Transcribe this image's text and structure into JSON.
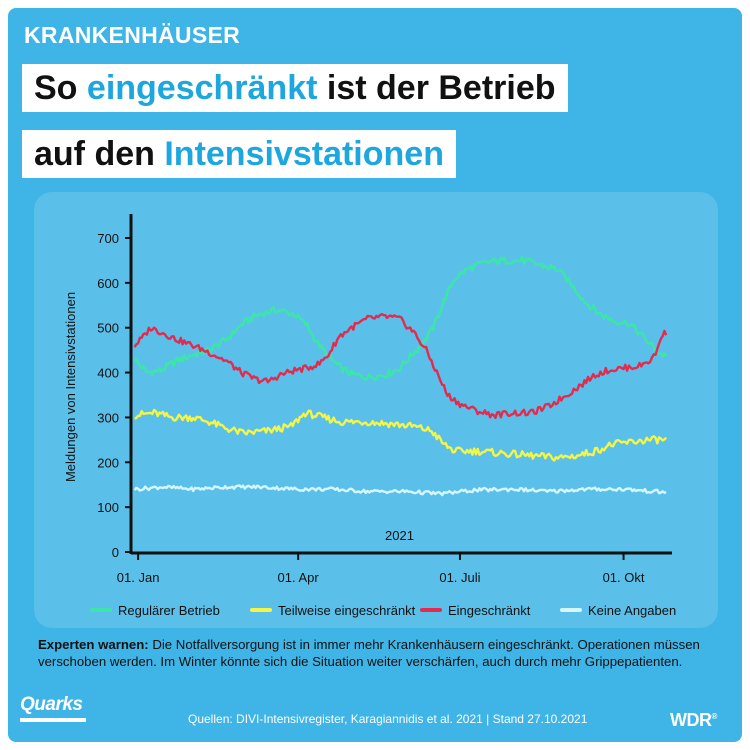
{
  "header": {
    "kicker": "KRANKENHÄUSER",
    "title_line1_part1": "So",
    "title_line1_highlight": "eingeschränkt",
    "title_line1_part2": "ist der Betrieb",
    "title_line2_part1": "auf den",
    "title_line2_highlight": "Intensivstationen"
  },
  "note": {
    "bold": "Experten warnen:",
    "text": "Die Notfallversorgung ist in immer mehr Krankenhäusern eingeschränkt. Operationen müssen verschoben werden. Im Winter könnte sich die Situation weiter verschärfen, auch durch mehr Grippepatienten."
  },
  "footer": {
    "brand": "Quarks",
    "sources": "Quellen: DIVI-Intensivregister, Karagiannidis et al. 2021 | Stand 27.10.2021",
    "wdr": "WDR",
    "wdr_mark": "®"
  },
  "colors": {
    "background": "#3fb4e6",
    "highlight": "#1ea6de",
    "regular": "#3de6a8",
    "partial": "#f5f545",
    "restricted": "#e42a4e",
    "none": "#d6f6ff"
  },
  "chart_data": {
    "type": "line",
    "title": "",
    "xlabel": "",
    "ylabel": "Meldungen von Intensivstationen",
    "year_label": "2021",
    "ylim": [
      0,
      700
    ],
    "xlim": [
      "2020-12-28",
      "2021-10-26"
    ],
    "yticks": [
      0,
      100,
      200,
      300,
      400,
      500,
      600,
      700
    ],
    "xticks": [
      {
        "date": "2021-01-01",
        "label": "01. Jan"
      },
      {
        "date": "2021-04-01",
        "label": "01. Apr"
      },
      {
        "date": "2021-07-01",
        "label": "01. Juli"
      },
      {
        "date": "2021-10-01",
        "label": "01. Okt"
      }
    ],
    "legend_position": "bottom",
    "series": [
      {
        "name": "Regulärer Betrieb",
        "color": "#3de6a8",
        "points": [
          [
            "2020-12-30",
            430
          ],
          [
            "2021-01-06",
            400
          ],
          [
            "2021-01-14",
            405
          ],
          [
            "2021-01-22",
            425
          ],
          [
            "2021-02-01",
            440
          ],
          [
            "2021-02-10",
            450
          ],
          [
            "2021-02-20",
            475
          ],
          [
            "2021-03-01",
            510
          ],
          [
            "2021-03-10",
            530
          ],
          [
            "2021-03-20",
            540
          ],
          [
            "2021-03-30",
            530
          ],
          [
            "2021-04-06",
            505
          ],
          [
            "2021-04-12",
            465
          ],
          [
            "2021-04-18",
            435
          ],
          [
            "2021-04-25",
            410
          ],
          [
            "2021-05-02",
            395
          ],
          [
            "2021-05-10",
            390
          ],
          [
            "2021-05-20",
            395
          ],
          [
            "2021-05-28",
            410
          ],
          [
            "2021-06-04",
            440
          ],
          [
            "2021-06-11",
            470
          ],
          [
            "2021-06-16",
            500
          ],
          [
            "2021-06-22",
            560
          ],
          [
            "2021-06-28",
            610
          ],
          [
            "2021-07-05",
            630
          ],
          [
            "2021-07-15",
            645
          ],
          [
            "2021-07-25",
            650
          ],
          [
            "2021-08-05",
            650
          ],
          [
            "2021-08-15",
            640
          ],
          [
            "2021-08-25",
            630
          ],
          [
            "2021-09-02",
            595
          ],
          [
            "2021-09-10",
            555
          ],
          [
            "2021-09-18",
            530
          ],
          [
            "2021-09-26",
            515
          ],
          [
            "2021-10-04",
            510
          ],
          [
            "2021-10-12",
            480
          ],
          [
            "2021-10-18",
            455
          ],
          [
            "2021-10-22",
            440
          ],
          [
            "2021-10-25",
            440
          ]
        ]
      },
      {
        "name": "Teilweise eingeschränkt",
        "color": "#f5f545",
        "points": [
          [
            "2020-12-30",
            305
          ],
          [
            "2021-01-10",
            310
          ],
          [
            "2021-01-20",
            300
          ],
          [
            "2021-02-01",
            300
          ],
          [
            "2021-02-10",
            290
          ],
          [
            "2021-02-20",
            275
          ],
          [
            "2021-03-01",
            265
          ],
          [
            "2021-03-15",
            270
          ],
          [
            "2021-03-28",
            280
          ],
          [
            "2021-04-05",
            310
          ],
          [
            "2021-04-15",
            300
          ],
          [
            "2021-04-25",
            290
          ],
          [
            "2021-05-10",
            290
          ],
          [
            "2021-05-25",
            285
          ],
          [
            "2021-06-05",
            280
          ],
          [
            "2021-06-15",
            270
          ],
          [
            "2021-06-22",
            240
          ],
          [
            "2021-06-28",
            225
          ],
          [
            "2021-07-10",
            225
          ],
          [
            "2021-07-25",
            220
          ],
          [
            "2021-08-10",
            215
          ],
          [
            "2021-08-25",
            210
          ],
          [
            "2021-09-05",
            215
          ],
          [
            "2021-09-15",
            225
          ],
          [
            "2021-09-25",
            240
          ],
          [
            "2021-10-05",
            245
          ],
          [
            "2021-10-15",
            250
          ],
          [
            "2021-10-25",
            250
          ]
        ]
      },
      {
        "name": "Eingeschränkt",
        "color": "#e42a4e",
        "points": [
          [
            "2020-12-30",
            460
          ],
          [
            "2021-01-04",
            480
          ],
          [
            "2021-01-08",
            500
          ],
          [
            "2021-01-14",
            490
          ],
          [
            "2021-01-22",
            475
          ],
          [
            "2021-02-01",
            460
          ],
          [
            "2021-02-10",
            445
          ],
          [
            "2021-02-20",
            425
          ],
          [
            "2021-02-28",
            400
          ],
          [
            "2021-03-08",
            385
          ],
          [
            "2021-03-15",
            380
          ],
          [
            "2021-03-22",
            395
          ],
          [
            "2021-03-30",
            405
          ],
          [
            "2021-04-06",
            410
          ],
          [
            "2021-04-13",
            420
          ],
          [
            "2021-04-18",
            440
          ],
          [
            "2021-04-24",
            480
          ],
          [
            "2021-05-01",
            500
          ],
          [
            "2021-05-10",
            520
          ],
          [
            "2021-05-20",
            525
          ],
          [
            "2021-05-28",
            520
          ],
          [
            "2021-06-05",
            490
          ],
          [
            "2021-06-12",
            450
          ],
          [
            "2021-06-18",
            400
          ],
          [
            "2021-06-24",
            350
          ],
          [
            "2021-07-01",
            330
          ],
          [
            "2021-07-10",
            315
          ],
          [
            "2021-07-20",
            305
          ],
          [
            "2021-07-30",
            310
          ],
          [
            "2021-08-10",
            310
          ],
          [
            "2021-08-20",
            325
          ],
          [
            "2021-08-30",
            350
          ],
          [
            "2021-09-08",
            375
          ],
          [
            "2021-09-15",
            395
          ],
          [
            "2021-09-22",
            405
          ],
          [
            "2021-10-01",
            410
          ],
          [
            "2021-10-10",
            415
          ],
          [
            "2021-10-17",
            430
          ],
          [
            "2021-10-20",
            450
          ],
          [
            "2021-10-22",
            480
          ],
          [
            "2021-10-25",
            490
          ]
        ]
      },
      {
        "name": "Keine Angaben",
        "color": "#d6f6ff",
        "points": [
          [
            "2020-12-30",
            140
          ],
          [
            "2021-01-15",
            145
          ],
          [
            "2021-02-01",
            140
          ],
          [
            "2021-02-20",
            145
          ],
          [
            "2021-03-10",
            145
          ],
          [
            "2021-04-01",
            140
          ],
          [
            "2021-04-20",
            140
          ],
          [
            "2021-05-10",
            135
          ],
          [
            "2021-06-01",
            135
          ],
          [
            "2021-06-20",
            130
          ],
          [
            "2021-07-10",
            138
          ],
          [
            "2021-08-01",
            140
          ],
          [
            "2021-08-20",
            135
          ],
          [
            "2021-09-10",
            140
          ],
          [
            "2021-10-01",
            140
          ],
          [
            "2021-10-25",
            133
          ]
        ]
      }
    ]
  }
}
